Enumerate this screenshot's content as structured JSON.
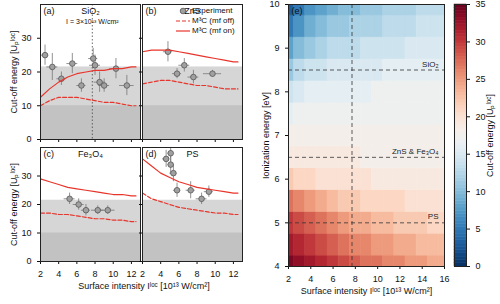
{
  "chart_data": [
    {
      "type": "scatter",
      "panel": "(a)",
      "title": "SiO₂",
      "y_label": "Cut-off energy [Uₚˡᵒᶜ]",
      "xlim": [
        2,
        13
      ],
      "xticks": [
        2,
        4,
        6,
        8,
        10,
        12
      ],
      "ylim": [
        0,
        40
      ],
      "yticks": [
        0,
        10,
        20,
        30
      ],
      "tick_labels": "y",
      "bands": [
        {
          "from": 0,
          "to": 21.5,
          "color": "#d6d6d6"
        },
        {
          "from": 0,
          "to": 10,
          "color": "#c2c2c2"
        }
      ],
      "annotation": "I = 3×10¹³ W/cm²",
      "vline": 7.7,
      "series": [
        {
          "name": "Experiment",
          "type": "scatter",
          "marker": "circle",
          "color": "#a0a0a0",
          "x": [
            2.5,
            3.3,
            4.3,
            5.5,
            6.5,
            7.8,
            8.0,
            8.5,
            9.0,
            10.3,
            11.5
          ],
          "values": [
            25,
            21.5,
            18,
            22.5,
            16,
            24,
            22,
            17,
            16,
            21,
            16
          ],
          "xerr": [
            0.4,
            0.6,
            0.5,
            0.6,
            0.5,
            0.5,
            0.6,
            0.6,
            0.6,
            0.7,
            0.8
          ],
          "yerr": [
            3,
            4,
            2,
            3,
            2,
            3,
            3,
            3,
            2,
            3,
            3
          ]
        },
        {
          "name": "M³C (mf off)",
          "type": "line",
          "line_style": "dashed",
          "color": "#e8352b",
          "x": [
            2,
            3,
            4,
            5,
            6,
            7,
            8,
            9,
            10,
            11,
            12,
            12.5
          ],
          "values": [
            10,
            11.5,
            12.5,
            12.5,
            12.5,
            12,
            11.5,
            11,
            11,
            10.5,
            10,
            10
          ]
        },
        {
          "name": "M³C (mf on)",
          "type": "line",
          "line_style": "solid",
          "color": "#e8352b",
          "x": [
            2,
            3,
            4,
            5,
            6,
            7,
            8,
            9,
            10,
            11,
            12,
            12.5
          ],
          "values": [
            12.5,
            15,
            17,
            18.5,
            19.5,
            20,
            20.5,
            20.5,
            21,
            21,
            21.5,
            21.5
          ]
        }
      ]
    },
    {
      "type": "scatter",
      "panel": "(b)",
      "title": "ZnS",
      "xlim": [
        2,
        13
      ],
      "xticks": [
        2,
        4,
        6,
        8,
        10,
        12
      ],
      "ylim": [
        0,
        40
      ],
      "yticks": [
        0,
        10,
        20,
        30
      ],
      "tick_labels": false,
      "legend": "top-right",
      "bands": [
        {
          "from": 0,
          "to": 21.5,
          "color": "#d6d6d6"
        },
        {
          "from": 0,
          "to": 10,
          "color": "#c2c2c2"
        }
      ],
      "series": [
        {
          "name": "Experiment",
          "type": "scatter",
          "marker": "circle",
          "color": "#a0a0a0",
          "x": [
            4.8,
            5.8,
            6.6,
            7.6,
            9.7
          ],
          "values": [
            26,
            19.5,
            22,
            18.5,
            19.5
          ],
          "xerr": [
            0.5,
            0.5,
            0.6,
            0.6,
            1.0
          ],
          "yerr": [
            3,
            1.5,
            2,
            2,
            1
          ]
        },
        {
          "name": "M³C (mf off)",
          "type": "line",
          "line_style": "dashed",
          "color": "#e8352b",
          "x": [
            2,
            3,
            4,
            5,
            6,
            7,
            8,
            9,
            10,
            11,
            12,
            12.5
          ],
          "values": [
            16.5,
            17,
            17.5,
            17.5,
            17,
            16.5,
            16,
            16,
            15.5,
            15,
            15,
            15
          ]
        },
        {
          "name": "M³C (mf on)",
          "type": "line",
          "line_style": "solid",
          "color": "#e8352b",
          "x": [
            2,
            3,
            4,
            5,
            6,
            7,
            8,
            9,
            10,
            11,
            12,
            12.5
          ],
          "values": [
            26,
            26.5,
            26.5,
            26.5,
            26,
            25.5,
            25,
            24.5,
            24,
            23.5,
            23,
            23
          ]
        }
      ]
    },
    {
      "type": "scatter",
      "panel": "(c)",
      "title": "Fe₃O₄",
      "y_label": "Cut-off energy [Uₚˡᵒᶜ]",
      "x_label": "Surface intensity Iˡᵒᶜ [10¹³ W/cm²]",
      "xlim": [
        2,
        13
      ],
      "xticks": [
        2,
        4,
        6,
        8,
        10,
        12
      ],
      "ylim": [
        0,
        40
      ],
      "yticks": [
        0,
        10,
        20,
        30
      ],
      "bands": [
        {
          "from": 0,
          "to": 21.5,
          "color": "#d6d6d6"
        },
        {
          "from": 0,
          "to": 10,
          "color": "#c2c2c2"
        }
      ],
      "series": [
        {
          "name": "Experiment",
          "type": "scatter",
          "marker": "circle",
          "color": "#a0a0a0",
          "x": [
            5.2,
            6.2,
            7.0,
            8.3,
            9.4
          ],
          "values": [
            22,
            20,
            18,
            18,
            18
          ],
          "xerr": [
            0.6,
            0.6,
            0.5,
            0.7,
            0.8
          ],
          "yerr": [
            2,
            2,
            2,
            1.5,
            1.5
          ]
        },
        {
          "name": "M³C (mf off)",
          "type": "line",
          "line_style": "dashed",
          "color": "#e8352b",
          "x": [
            2,
            3,
            4,
            5,
            6,
            7,
            8,
            9,
            10,
            11,
            12,
            12.5
          ],
          "values": [
            17,
            17,
            16.5,
            16.5,
            16,
            15.5,
            15,
            15,
            14.5,
            14.5,
            14,
            14
          ]
        },
        {
          "name": "M³C (mf on)",
          "type": "line",
          "line_style": "solid",
          "color": "#e8352b",
          "x": [
            2,
            3,
            4,
            5,
            6,
            7,
            8,
            9,
            10,
            11,
            12,
            12.5
          ],
          "values": [
            29,
            28,
            27,
            26,
            25.5,
            25,
            24.5,
            24,
            23.5,
            23.5,
            23,
            23
          ]
        }
      ]
    },
    {
      "type": "scatter",
      "panel": "(d)",
      "title": "PS",
      "xlim": [
        2,
        13
      ],
      "xticks": [
        2,
        4,
        6,
        8,
        10,
        12
      ],
      "ylim": [
        0,
        40
      ],
      "yticks": [
        0,
        10,
        20,
        30
      ],
      "tick_labels": "x",
      "bands": [
        {
          "from": 0,
          "to": 21.5,
          "color": "#d6d6d6"
        },
        {
          "from": 0,
          "to": 10,
          "color": "#c2c2c2"
        }
      ],
      "series": [
        {
          "name": "Experiment",
          "type": "scatter",
          "marker": "circle",
          "color": "#a0a0a0",
          "x": [
            4.6,
            5.1,
            5.1,
            5.4,
            5.8,
            7.3,
            8.5,
            9.3
          ],
          "values": [
            36,
            38,
            34,
            31,
            25,
            25,
            22,
            24.5
          ],
          "xerr": [
            0.4,
            0.3,
            0.3,
            0.4,
            0.4,
            0.5,
            0.6,
            0.5
          ],
          "yerr": [
            3,
            3,
            3,
            3,
            2.5,
            3,
            2,
            2
          ]
        },
        {
          "name": "M³C (mf off)",
          "type": "line",
          "line_style": "dashed",
          "color": "#e8352b",
          "x": [
            2,
            3,
            4,
            5,
            6,
            7,
            8,
            9,
            10,
            11,
            12,
            12.5
          ],
          "values": [
            24,
            22,
            21,
            20,
            19,
            18.5,
            18,
            17.5,
            17,
            17,
            16.5,
            16.5
          ]
        },
        {
          "name": "M³C (mf on)",
          "type": "line",
          "line_style": "solid",
          "color": "#e8352b",
          "x": [
            2,
            3,
            4,
            5,
            6,
            7,
            8,
            9,
            10,
            11,
            12,
            12.5
          ],
          "values": [
            36,
            33.5,
            31,
            29.5,
            28,
            27,
            26,
            25.5,
            25,
            24.5,
            24,
            24
          ]
        }
      ]
    },
    {
      "type": "heatmap",
      "panel": "(e)",
      "x_label": "Surface intensity Iˡᵒᶜ [10¹³ W/cm²]",
      "y_label": "Ionization energy [eV]",
      "xlim": [
        2,
        16
      ],
      "xticks": [
        2,
        4,
        6,
        8,
        10,
        12,
        14,
        16
      ],
      "ylim": [
        4,
        10
      ],
      "yticks": [
        4,
        5,
        6,
        7,
        8,
        9,
        10
      ],
      "x": [
        2,
        3,
        4,
        5,
        6,
        7,
        8,
        9,
        10,
        11,
        12,
        13,
        14,
        15,
        16
      ],
      "y": [
        4,
        4.5,
        5,
        5.5,
        6,
        6.5,
        7,
        7.5,
        8,
        8.5,
        9,
        9.5,
        10
      ],
      "cells": [
        [
          34,
          33,
          32,
          31,
          30,
          29,
          28,
          27,
          27,
          26,
          26,
          25,
          25,
          24,
          24
        ],
        [
          32,
          31,
          30,
          29,
          28,
          27,
          26,
          26,
          25,
          25,
          24,
          24,
          23,
          23,
          23
        ],
        [
          30,
          29,
          28,
          27,
          26,
          25,
          24,
          24,
          23,
          23,
          22,
          22,
          22,
          21,
          21
        ],
        [
          27,
          26,
          25,
          24,
          23,
          22,
          22,
          21,
          21,
          21,
          21,
          20,
          20,
          20,
          20
        ],
        [
          22,
          21,
          21,
          20,
          20,
          20,
          20,
          20,
          19,
          19,
          19,
          19,
          19,
          19,
          19
        ],
        [
          19,
          19,
          19,
          19,
          19,
          19,
          19,
          18,
          18,
          18,
          18,
          18,
          18,
          18,
          18
        ],
        [
          18,
          18,
          18,
          18,
          18,
          18,
          18,
          18,
          18,
          18,
          18,
          18,
          18,
          18,
          18
        ],
        [
          16,
          17,
          17,
          17,
          17,
          17,
          17,
          17,
          17,
          17,
          17,
          17,
          17,
          17,
          17
        ],
        [
          14,
          15,
          16,
          16,
          16,
          16,
          16,
          16,
          17,
          17,
          17,
          17,
          17,
          17,
          17
        ],
        [
          11,
          13,
          14,
          14,
          15,
          15,
          15,
          15,
          15,
          16,
          16,
          16,
          16,
          16,
          16
        ],
        [
          8,
          10,
          11,
          12,
          13,
          13,
          13,
          14,
          14,
          14,
          14,
          15,
          15,
          15,
          15
        ],
        [
          5,
          7,
          9,
          10,
          11,
          11,
          12,
          12,
          12,
          13,
          13,
          13,
          14,
          14,
          14
        ],
        [
          3,
          5,
          7,
          8,
          9,
          10,
          10,
          11,
          11,
          12,
          12,
          12,
          13,
          13,
          13
        ]
      ],
      "colorbar": {
        "lim": [
          0,
          35
        ],
        "ticks": [
          0,
          5,
          10,
          15,
          20,
          25,
          30,
          35
        ],
        "label": "Cut-off energy [Uₚˡᵒᶜ]"
      },
      "hlines": [
        {
          "value": 8.5,
          "label": "SiO₂"
        },
        {
          "value": 6.5,
          "label": "ZnS & Fe₃O₄"
        },
        {
          "value": 5,
          "label": "PS"
        }
      ],
      "vline": 7.7
    }
  ]
}
